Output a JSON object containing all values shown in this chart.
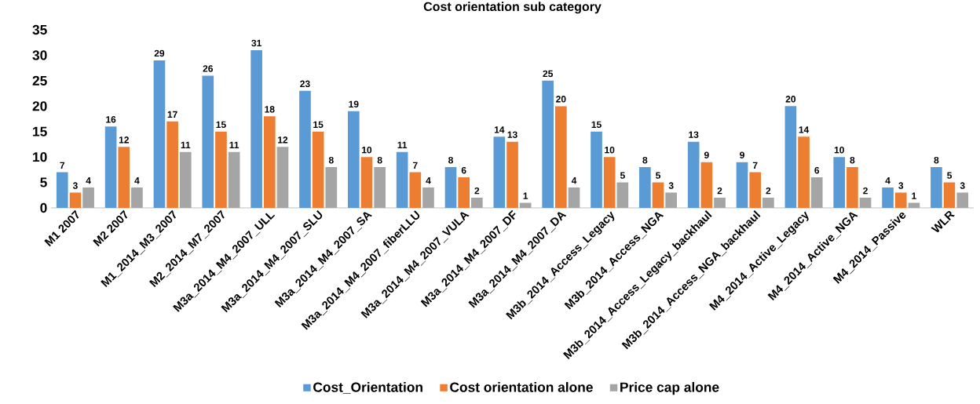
{
  "chart_data": {
    "type": "bar",
    "title": "Cost orientation sub category",
    "categories": [
      "M1 2007",
      "M2 2007",
      "M1_2014_M3_2007",
      "M2_2014_M7_2007",
      "M3a_2014_M4_2007_ULL",
      "M3a_2014_M4_2007_SLU",
      "M3a_2014_M4_2007_SA",
      "M3a_2014_M4_2007_fiberLLU",
      "M3a_2014_M4_2007_VULA",
      "M3a_2014_M4_2007_DF",
      "M3a_2014_M4_2007_DA",
      "M3b_2014_Access_Legacy",
      "M3b_2014_Access_NGA",
      "M3b_2014_Access_Legacy_backhaul",
      "M3b_2014_Access_NGA_backhaul",
      "M4_2014_Active_Legacy",
      "M4_2014_Active_NGA",
      "M4_2014_Passive",
      "WLR"
    ],
    "series": [
      {
        "name": "Cost_Orientation",
        "color": "#5b9bd5",
        "values": [
          7,
          16,
          29,
          26,
          31,
          23,
          19,
          11,
          8,
          14,
          25,
          15,
          8,
          13,
          9,
          20,
          10,
          4,
          8
        ]
      },
      {
        "name": "Cost orientation alone",
        "color": "#ed7d31",
        "values": [
          3,
          12,
          17,
          15,
          18,
          15,
          10,
          7,
          6,
          13,
          20,
          10,
          5,
          9,
          7,
          14,
          8,
          3,
          5
        ]
      },
      {
        "name": "Price cap alone",
        "color": "#a5a5a5",
        "values": [
          4,
          4,
          11,
          11,
          12,
          8,
          8,
          4,
          2,
          1,
          4,
          5,
          3,
          2,
          2,
          6,
          2,
          1,
          3
        ]
      }
    ],
    "ylim": [
      0,
      35
    ],
    "yticks": [
      0,
      5,
      10,
      15,
      20,
      25,
      30,
      35
    ],
    "data_labels": true,
    "legend": "bottom",
    "grid": false
  }
}
